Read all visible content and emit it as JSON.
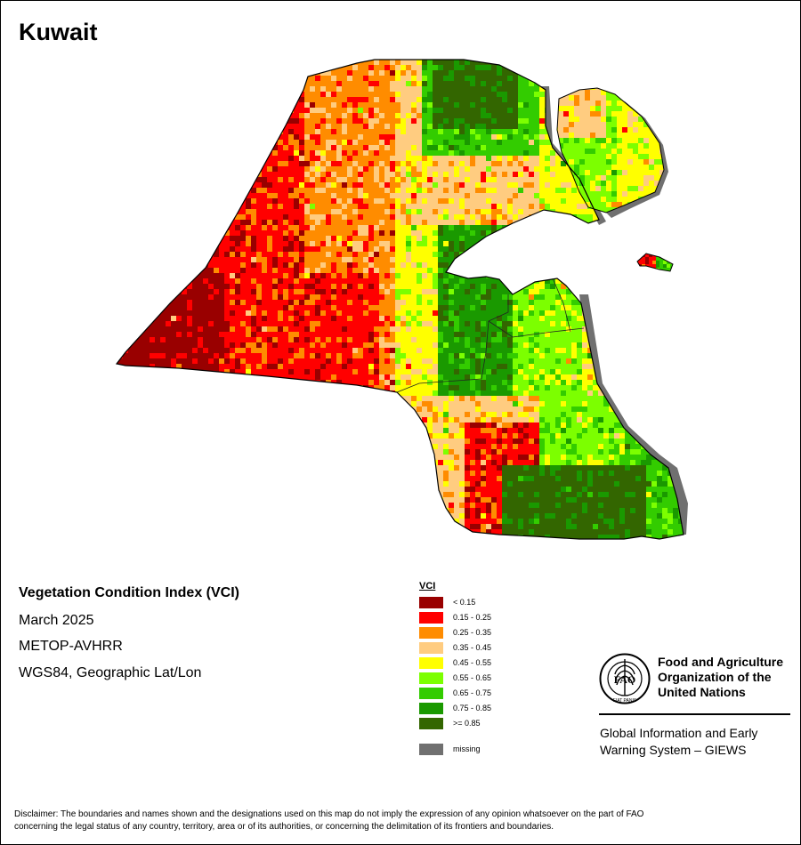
{
  "map": {
    "title": "Kuwait",
    "colors": {
      "sea": "#ffffff",
      "missing": "#707070",
      "border": "#000000",
      "internal_border": "#222222"
    }
  },
  "info": {
    "line1": "Vegetation Condition Index (VCI)",
    "line2": "March 2025",
    "line3": "METOP-AVHRR",
    "line4": "WGS84, Geographic Lat/Lon"
  },
  "legend": {
    "title": "VCI",
    "items": [
      {
        "label": "< 0.15",
        "color": "#990000"
      },
      {
        "label": "0.15 - 0.25",
        "color": "#ff0000"
      },
      {
        "label": "0.25 - 0.35",
        "color": "#ff8c00"
      },
      {
        "label": "0.35 - 0.45",
        "color": "#ffcc80"
      },
      {
        "label": "0.45 - 0.55",
        "color": "#ffff00"
      },
      {
        "label": "0.55 - 0.65",
        "color": "#7cff00"
      },
      {
        "label": "0.65 - 0.75",
        "color": "#33cc00"
      },
      {
        "label": "0.75 - 0.85",
        "color": "#1a9900"
      },
      {
        "label": ">= 0.85",
        "color": "#336600"
      }
    ],
    "missing": {
      "label": "missing",
      "color": "#707070"
    }
  },
  "org": {
    "line1": "Food and Agriculture",
    "line2": "Organization of the",
    "line3": "United Nations",
    "logo_letters": "FAO",
    "logo_motto": "FIAT PANIS"
  },
  "giews": {
    "line1": "Global Information and Early",
    "line2": "Warning System – GIEWS"
  },
  "disclaimer": {
    "line1": "Disclaimer: The boundaries and names shown and the designations used on this map do not imply the expression of any opinion whatsoever on the part of FAO",
    "line2": "concerning the legal status of any country, territory, area or of its authorities, or concerning the delimitation of its frontiers and boundaries."
  }
}
